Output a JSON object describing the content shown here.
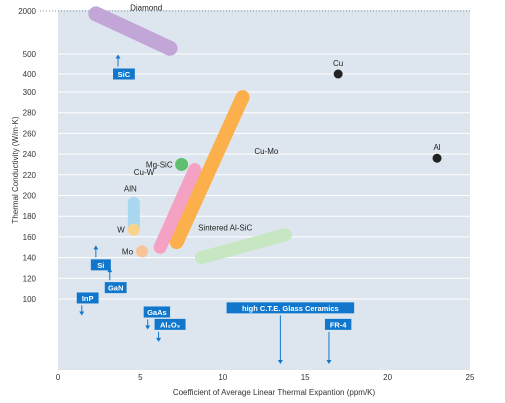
{
  "chart_data": {
    "type": "scatter",
    "xlabel": "Coefficient of Average Linear Thermal Expantion (ppm/K)",
    "ylabel": "Thermal Conductivity (W/m·K)",
    "x_ticks": [
      "0",
      "5",
      "10",
      "15",
      "20",
      "25"
    ],
    "y_ticks": [
      "100",
      "120",
      "140",
      "160",
      "180",
      "200",
      "220",
      "240",
      "260",
      "280",
      "300",
      "400",
      "500",
      "2000"
    ],
    "xlim": [
      0,
      25
    ],
    "y_scale": "piecewise",
    "grid": "horizontal",
    "colors": {
      "background": "#dde6ee",
      "grid": "#ffffff",
      "box": "#1177cc",
      "point": "#222222",
      "diamond": "#c3a6d8",
      "cu_mo": "#fbb04c",
      "cu_w": "#f4a1c4",
      "aln": "#a8d8f0",
      "mg_sic": "#5fbf6e",
      "sintered": "#c6e7c2"
    },
    "points": [
      {
        "name": "Cu",
        "x": 17,
        "y": 400
      },
      {
        "name": "Al",
        "x": 23,
        "y": 236
      },
      {
        "name": "Mg-SiC",
        "x": 7.5,
        "y": 230
      },
      {
        "name": "W",
        "x": 4.6,
        "y": 167
      },
      {
        "name": "Mo",
        "x": 5.1,
        "y": 146
      }
    ],
    "regions": [
      {
        "name": "Diamond",
        "x": [
          2.3,
          6.8
        ],
        "y": [
          1900,
          700
        ]
      },
      {
        "name": "Cu-Mo",
        "x": [
          7.2,
          11.2
        ],
        "y": [
          155,
          295
        ]
      },
      {
        "name": "Cu-W",
        "x": [
          6.2,
          8.3
        ],
        "y": [
          150,
          225
        ]
      },
      {
        "name": "AlN",
        "x": [
          4.6,
          4.6
        ],
        "y": [
          168,
          193
        ]
      },
      {
        "name": "Sintered Al-SiC",
        "x": [
          8.7,
          13.8
        ],
        "y": [
          140,
          162
        ]
      }
    ],
    "boxes": [
      {
        "name": "SiC",
        "x": 4.0,
        "y": 400,
        "dir": "up"
      },
      {
        "name": "Si",
        "x": 2.6,
        "y": 133,
        "dir": "up"
      },
      {
        "name": "GaN",
        "x": 3.5,
        "y": 111,
        "dir": "up"
      },
      {
        "name": "InP",
        "x": 1.8,
        "y": 101,
        "dir": "down"
      },
      {
        "name": "GaAs",
        "x": 6.0,
        "y": 78,
        "dir": "down"
      },
      {
        "name": "Al₂O₃",
        "x": 6.8,
        "y": 57,
        "dir": "down"
      },
      {
        "name": "high C.T.E. Glass Ceramics",
        "x": 14.1,
        "y": 85,
        "dir": "down"
      },
      {
        "name": "FR-4",
        "x": 17,
        "y": 57,
        "dir": "down"
      }
    ]
  }
}
